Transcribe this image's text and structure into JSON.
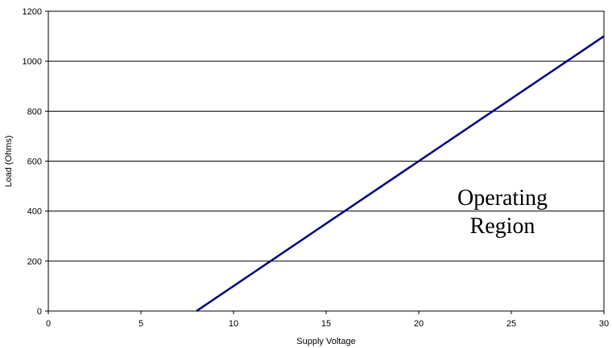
{
  "chart_data": {
    "type": "line",
    "title": "",
    "xlabel": "Supply Voltage",
    "ylabel": "Load (Ohms)",
    "xlim": [
      0,
      30
    ],
    "ylim": [
      0,
      1200
    ],
    "xticks": [
      0,
      5,
      10,
      15,
      20,
      25,
      30
    ],
    "yticks": [
      0,
      200,
      400,
      600,
      800,
      1000,
      1200
    ],
    "grid": "horizontal",
    "legend": "none",
    "series": [
      {
        "color": "#000080",
        "x": [
          8,
          30
        ],
        "y": [
          0,
          1100
        ]
      }
    ],
    "annotation": {
      "lines": [
        "Operating",
        "Region"
      ]
    }
  }
}
